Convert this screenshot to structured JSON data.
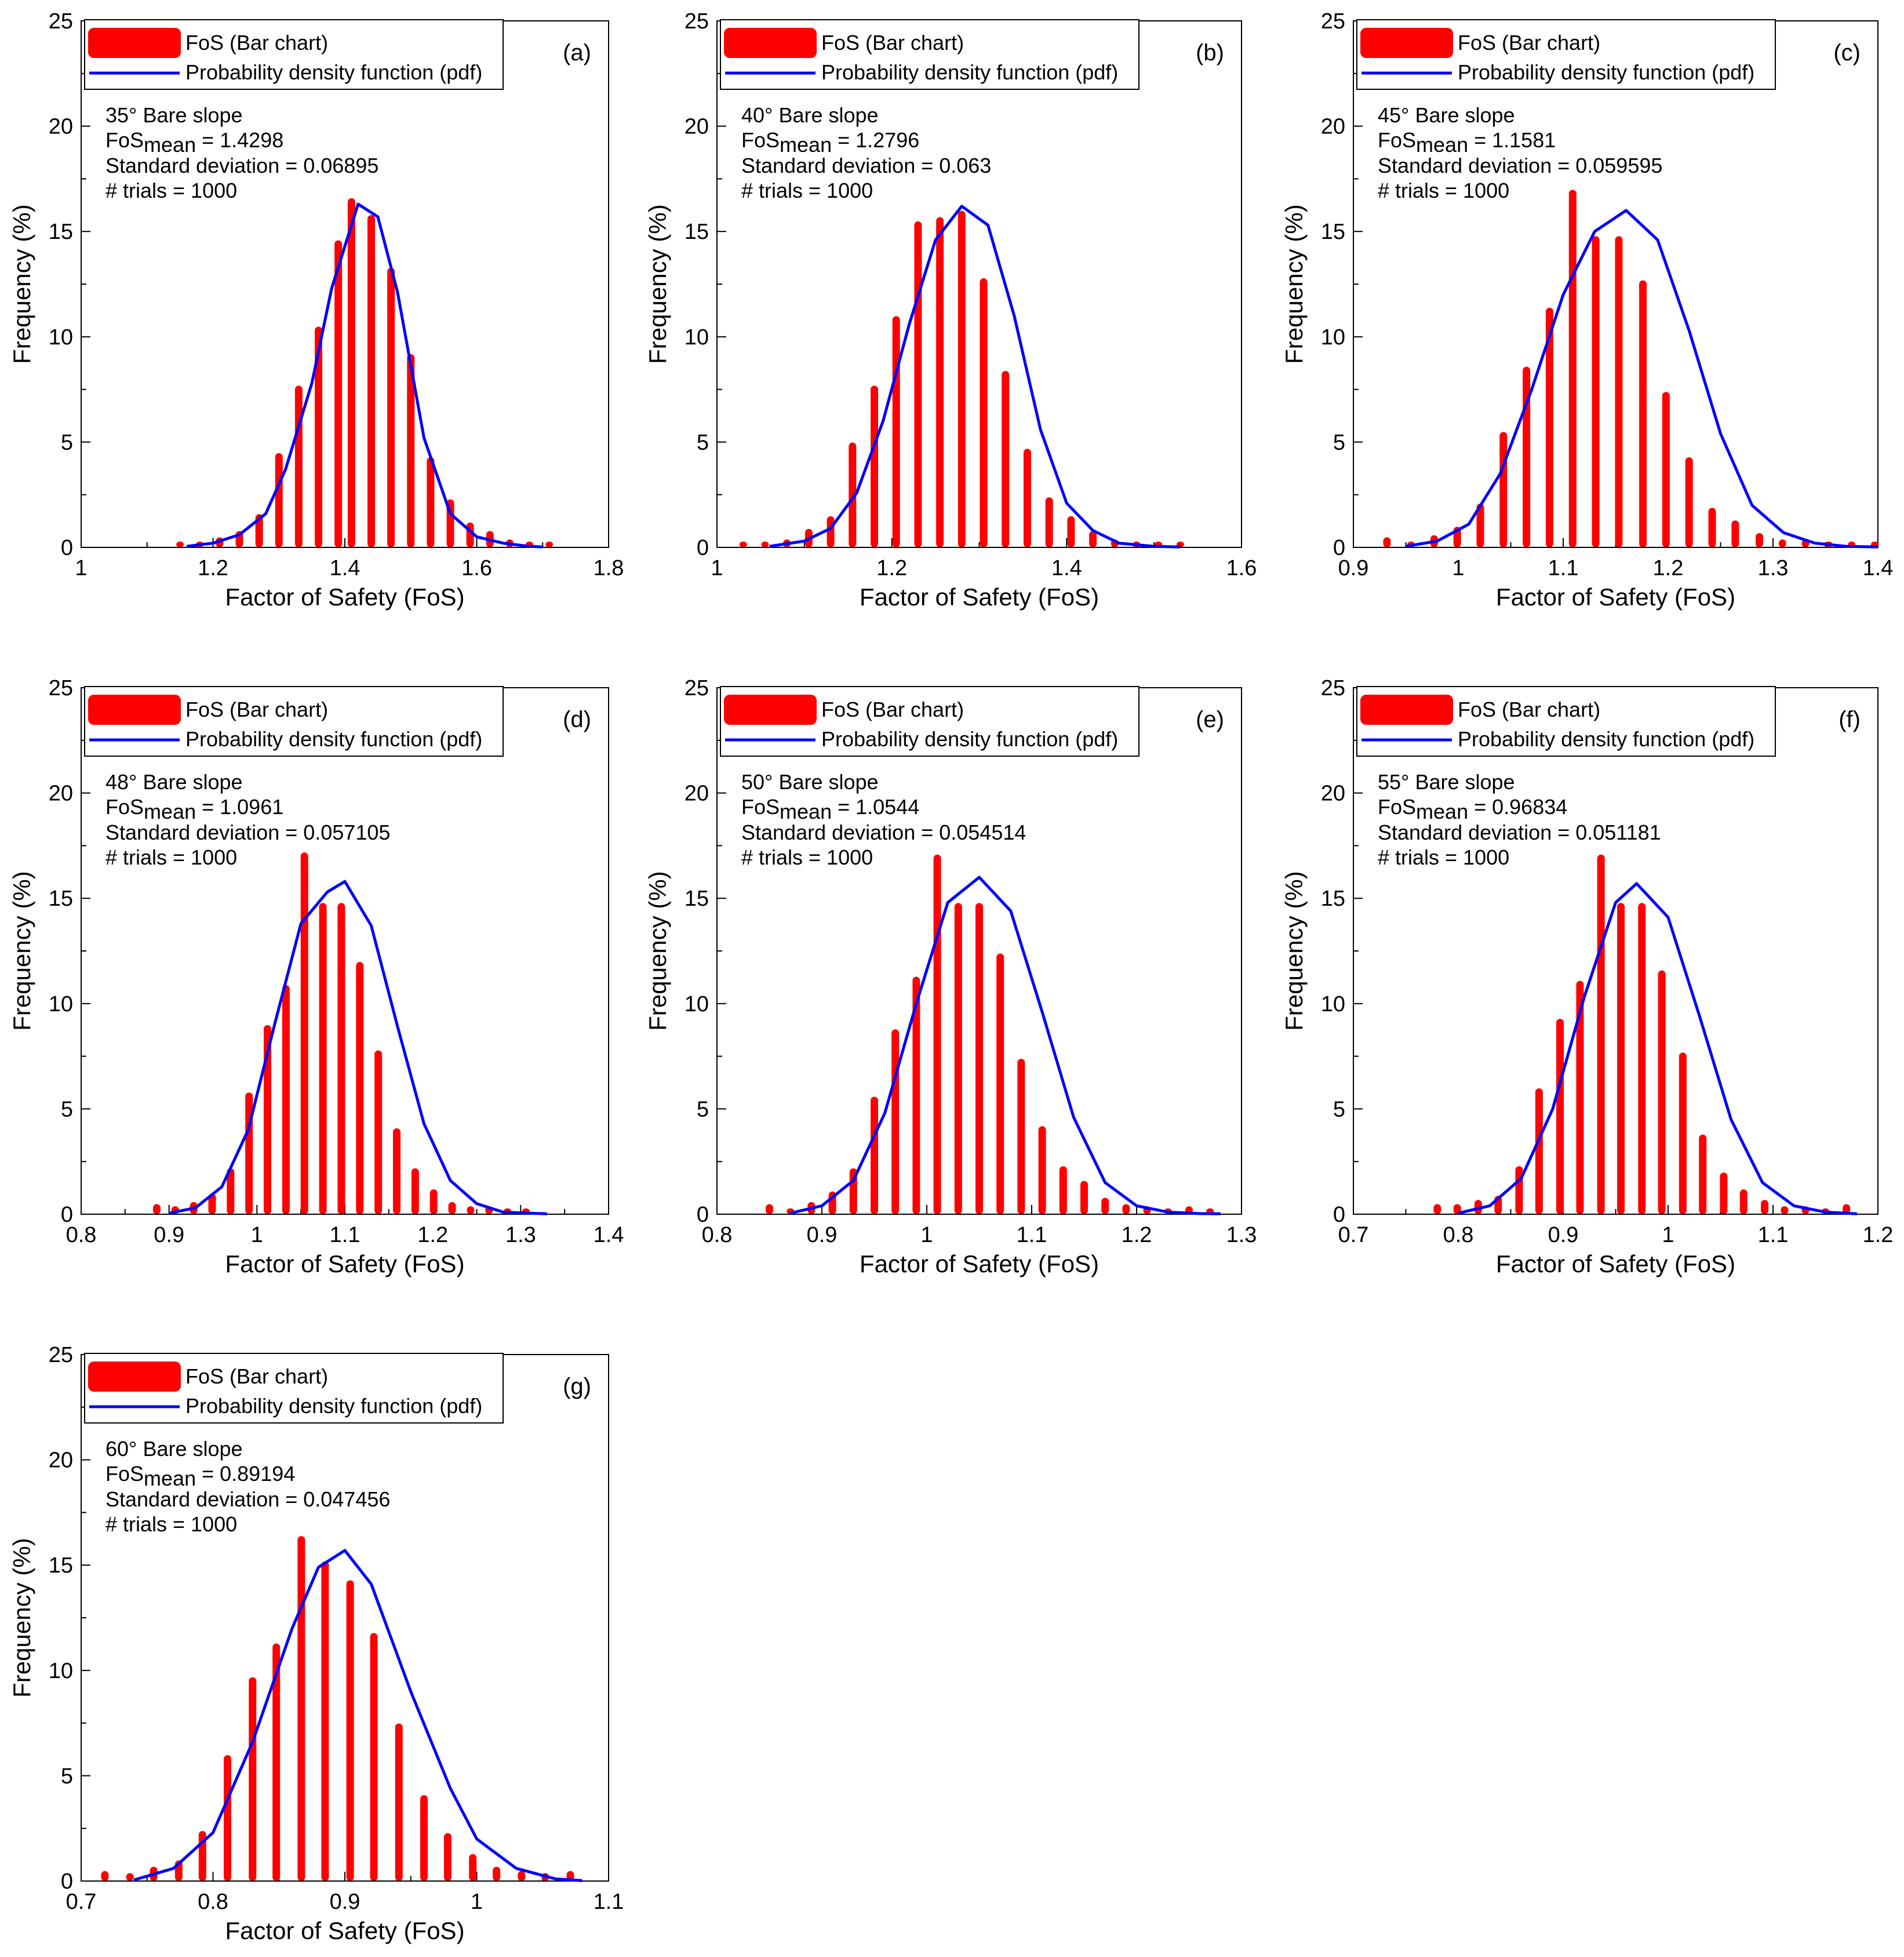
{
  "colors": {
    "bars": "#ff0000",
    "pdf": "#0000ff",
    "axes": "#000000"
  },
  "chart_data": [
    {
      "id": "a",
      "panel_label": "(a)",
      "type": "bar",
      "slope_label": "35° Bare slope",
      "fos_mean_prefix": "FoS",
      "fos_mean_sub": "mean",
      "fos_mean_value": " = 1.4298",
      "std_text": "Standard deviation = 0.06895",
      "trials_text": "# trials = 1000",
      "legend": [
        "FoS (Bar chart)",
        "Probability density function (pdf)"
      ],
      "xlabel": "Factor of Safety (FoS)",
      "ylabel": "Frequency (%)",
      "xlim": [
        1,
        1.8
      ],
      "xticks": [
        1,
        1.2,
        1.4,
        1.6,
        1.8
      ],
      "xtick_labels": [
        "1",
        "1.2",
        "1.4",
        "1.6",
        "1.8"
      ],
      "ylim": [
        0,
        25
      ],
      "yticks": [
        0,
        5,
        10,
        15,
        20,
        25
      ],
      "ytick_labels": [
        "0",
        "5",
        "10",
        "15",
        "20",
        "25"
      ],
      "bars": {
        "x": [
          1.15,
          1.18,
          1.21,
          1.24,
          1.27,
          1.3,
          1.33,
          1.36,
          1.39,
          1.41,
          1.44,
          1.47,
          1.5,
          1.53,
          1.56,
          1.59,
          1.62,
          1.65,
          1.68,
          1.71
        ],
        "y": [
          0.1,
          0.1,
          0.3,
          0.6,
          1.4,
          4.3,
          7.5,
          10.3,
          14.4,
          16.4,
          15.6,
          13.1,
          9.0,
          4.1,
          2.1,
          1.0,
          0.6,
          0.2,
          0.1,
          0.1
        ]
      },
      "pdf": {
        "x": [
          1.16,
          1.2,
          1.24,
          1.28,
          1.31,
          1.35,
          1.38,
          1.42,
          1.45,
          1.48,
          1.52,
          1.56,
          1.6,
          1.64,
          1.68,
          1.7
        ],
        "y": [
          0.05,
          0.2,
          0.6,
          1.6,
          3.7,
          7.8,
          12.3,
          16.3,
          15.7,
          12.1,
          5.2,
          1.6,
          0.5,
          0.2,
          0.05,
          0.02
        ]
      }
    },
    {
      "id": "b",
      "panel_label": "(b)",
      "type": "bar",
      "slope_label": "40° Bare slope",
      "fos_mean_prefix": "FoS",
      "fos_mean_sub": "mean",
      "fos_mean_value": " = 1.2796",
      "std_text": "Standard deviation = 0.063",
      "trials_text": "# trials = 1000",
      "legend": [
        "FoS (Bar chart)",
        "Probability density function (pdf)"
      ],
      "xlabel": "Factor of Safety (FoS)",
      "ylabel": "Frequency (%)",
      "xlim": [
        1,
        1.6
      ],
      "xticks": [
        1,
        1.2,
        1.4,
        1.6
      ],
      "xtick_labels": [
        "1",
        "1.2",
        "1.4",
        "1.6"
      ],
      "ylim": [
        0,
        25
      ],
      "yticks": [
        0,
        5,
        10,
        15,
        20,
        25
      ],
      "ytick_labels": [
        "0",
        "5",
        "10",
        "15",
        "20",
        "25"
      ],
      "bars": {
        "x": [
          1.03,
          1.055,
          1.08,
          1.105,
          1.13,
          1.155,
          1.18,
          1.205,
          1.23,
          1.255,
          1.28,
          1.305,
          1.33,
          1.355,
          1.38,
          1.405,
          1.43,
          1.455,
          1.48,
          1.505,
          1.53
        ],
        "y": [
          0.1,
          0.1,
          0.2,
          0.7,
          1.3,
          4.8,
          7.5,
          10.8,
          15.3,
          15.5,
          15.8,
          12.6,
          8.2,
          4.5,
          2.2,
          1.3,
          0.6,
          0.2,
          0.1,
          0.1,
          0.1
        ]
      },
      "pdf": {
        "x": [
          1.06,
          1.1,
          1.13,
          1.16,
          1.19,
          1.22,
          1.25,
          1.28,
          1.31,
          1.34,
          1.37,
          1.4,
          1.43,
          1.46,
          1.5,
          1.53
        ],
        "y": [
          0.05,
          0.3,
          0.9,
          2.6,
          6.0,
          10.6,
          14.6,
          16.2,
          15.3,
          11.0,
          5.6,
          2.1,
          0.8,
          0.2,
          0.05,
          0.02
        ]
      }
    },
    {
      "id": "c",
      "panel_label": "(c)",
      "type": "bar",
      "slope_label": "45° Bare slope",
      "fos_mean_prefix": "FoS",
      "fos_mean_sub": "mean",
      "fos_mean_value": " = 1.1581",
      "std_text": "Standard deviation = 0.059595",
      "trials_text": "# trials = 1000",
      "legend": [
        "FoS (Bar chart)",
        "Probability density function (pdf)"
      ],
      "xlabel": "Factor of Safety (FoS)",
      "ylabel": "Frequency (%)",
      "xlim": [
        0.9,
        1.4
      ],
      "xticks": [
        0.9,
        1,
        1.1,
        1.2,
        1.3,
        1.4
      ],
      "xtick_labels": [
        "0.9",
        "1",
        "1.1",
        "1.2",
        "1.3",
        "1.4"
      ],
      "ylim": [
        0,
        25
      ],
      "yticks": [
        0,
        5,
        10,
        15,
        20,
        25
      ],
      "ytick_labels": [
        "0",
        "5",
        "10",
        "15",
        "20",
        "25"
      ],
      "bars": {
        "x": [
          0.932,
          0.955,
          0.977,
          0.999,
          1.021,
          1.043,
          1.065,
          1.087,
          1.109,
          1.131,
          1.153,
          1.176,
          1.198,
          1.22,
          1.242,
          1.264,
          1.287,
          1.309,
          1.331,
          1.353,
          1.375,
          1.397
        ],
        "y": [
          0.3,
          0.1,
          0.4,
          0.8,
          1.9,
          5.3,
          8.4,
          11.2,
          16.8,
          14.6,
          14.6,
          12.5,
          7.2,
          4.1,
          1.7,
          1.1,
          0.5,
          0.2,
          0.2,
          0.1,
          0.1,
          0.1
        ]
      },
      "pdf": {
        "x": [
          0.95,
          0.98,
          1.01,
          1.04,
          1.07,
          1.1,
          1.13,
          1.16,
          1.19,
          1.22,
          1.25,
          1.28,
          1.31,
          1.34,
          1.37,
          1.4
        ],
        "y": [
          0.05,
          0.3,
          1.1,
          3.5,
          7.5,
          12.0,
          15.0,
          16.0,
          14.6,
          10.3,
          5.4,
          2.0,
          0.7,
          0.2,
          0.05,
          0.02
        ]
      }
    },
    {
      "id": "d",
      "panel_label": "(d)",
      "type": "bar",
      "slope_label": "48° Bare slope",
      "fos_mean_prefix": "FoS",
      "fos_mean_sub": "mean",
      "fos_mean_value": " = 1.0961",
      "std_text": "Standard deviation = 0.057105",
      "trials_text": "# trials = 1000",
      "legend": [
        "FoS (Bar chart)",
        "Probability density function (pdf)"
      ],
      "xlabel": "Factor of Safety (FoS)",
      "ylabel": "Frequency (%)",
      "xlim": [
        0.8,
        1.4
      ],
      "xticks": [
        0.8,
        0.9,
        1,
        1.1,
        1.2,
        1.3,
        1.4
      ],
      "xtick_labels": [
        "0.8",
        "0.9",
        "1",
        "1.1",
        "1.2",
        "1.3",
        "1.4"
      ],
      "ylim": [
        0,
        25
      ],
      "yticks": [
        0,
        5,
        10,
        15,
        20,
        25
      ],
      "ytick_labels": [
        "0",
        "5",
        "10",
        "15",
        "20",
        "25"
      ],
      "bars": {
        "x": [
          0.886,
          0.907,
          0.928,
          0.949,
          0.97,
          0.991,
          1.012,
          1.033,
          1.054,
          1.075,
          1.096,
          1.117,
          1.138,
          1.159,
          1.18,
          1.201,
          1.222,
          1.243,
          1.264,
          1.285,
          1.306
        ],
        "y": [
          0.3,
          0.2,
          0.4,
          0.8,
          2.0,
          5.6,
          8.8,
          10.7,
          17.0,
          14.6,
          14.6,
          11.8,
          7.6,
          3.9,
          2.0,
          1.0,
          0.4,
          0.2,
          0.2,
          0.1,
          0.1
        ]
      },
      "pdf": {
        "x": [
          0.9,
          0.93,
          0.96,
          0.99,
          1.02,
          1.05,
          1.08,
          1.1,
          1.13,
          1.16,
          1.19,
          1.22,
          1.25,
          1.28,
          1.31,
          1.33
        ],
        "y": [
          0.05,
          0.3,
          1.3,
          4.0,
          9.0,
          13.8,
          15.3,
          15.8,
          13.7,
          8.9,
          4.3,
          1.6,
          0.5,
          0.1,
          0.05,
          0.02
        ]
      }
    },
    {
      "id": "e",
      "panel_label": "(e)",
      "type": "bar",
      "slope_label": "50° Bare slope",
      "fos_mean_prefix": "FoS",
      "fos_mean_sub": "mean",
      "fos_mean_value": " = 1.0544",
      "std_text": "Standard deviation = 0.054514",
      "trials_text": "# trials = 1000",
      "legend": [
        "FoS (Bar chart)",
        "Probability density function (pdf)"
      ],
      "xlabel": "Factor of Safety (FoS)",
      "ylabel": "Frequency (%)",
      "xlim": [
        0.8,
        1.3
      ],
      "xticks": [
        0.8,
        0.9,
        1,
        1.1,
        1.2,
        1.3
      ],
      "xtick_labels": [
        "0.8",
        "0.9",
        "1",
        "1.1",
        "1.2",
        "1.3"
      ],
      "ylim": [
        0,
        25
      ],
      "yticks": [
        0,
        5,
        10,
        15,
        20,
        25
      ],
      "ytick_labels": [
        "0",
        "5",
        "10",
        "15",
        "20",
        "25"
      ],
      "bars": {
        "x": [
          0.85,
          0.87,
          0.89,
          0.91,
          0.93,
          0.95,
          0.97,
          0.99,
          1.01,
          1.03,
          1.05,
          1.07,
          1.09,
          1.11,
          1.13,
          1.15,
          1.17,
          1.19,
          1.21,
          1.23,
          1.25,
          1.27
        ],
        "y": [
          0.3,
          0.1,
          0.4,
          0.9,
          2.0,
          5.4,
          8.6,
          11.1,
          16.9,
          14.6,
          14.6,
          12.2,
          7.2,
          4.0,
          2.1,
          1.4,
          0.6,
          0.3,
          0.2,
          0.1,
          0.2,
          0.1
        ]
      },
      "pdf": {
        "x": [
          0.87,
          0.9,
          0.93,
          0.96,
          0.99,
          1.02,
          1.05,
          1.08,
          1.11,
          1.14,
          1.17,
          1.2,
          1.23,
          1.26,
          1.28
        ],
        "y": [
          0.05,
          0.4,
          1.6,
          4.8,
          10.0,
          14.8,
          16.0,
          14.4,
          9.6,
          4.6,
          1.5,
          0.4,
          0.1,
          0.03,
          0.02
        ]
      }
    },
    {
      "id": "f",
      "panel_label": "(f)",
      "type": "bar",
      "slope_label": "55° Bare slope",
      "fos_mean_prefix": "FoS",
      "fos_mean_sub": "mean",
      "fos_mean_value": " = 0.96834",
      "std_text": "Standard deviation = 0.051181",
      "trials_text": "# trials = 1000",
      "legend": [
        "FoS (Bar chart)",
        "Probability density function (pdf)"
      ],
      "xlabel": "Factor of Safety (FoS)",
      "ylabel": "Frequency (%)",
      "xlim": [
        0.7,
        1.2
      ],
      "xticks": [
        0.7,
        0.8,
        0.9,
        1,
        1.1,
        1.2
      ],
      "xtick_labels": [
        "0.7",
        "0.8",
        "0.9",
        "1",
        "1.1",
        "1.2"
      ],
      "ylim": [
        0,
        25
      ],
      "yticks": [
        0,
        5,
        10,
        15,
        20,
        25
      ],
      "ytick_labels": [
        "0",
        "5",
        "10",
        "15",
        "20",
        "25"
      ],
      "bars": {
        "x": [
          0.78,
          0.799,
          0.819,
          0.838,
          0.858,
          0.877,
          0.897,
          0.916,
          0.936,
          0.955,
          0.975,
          0.994,
          1.014,
          1.033,
          1.053,
          1.072,
          1.092,
          1.111,
          1.131,
          1.15,
          1.17
        ],
        "y": [
          0.3,
          0.3,
          0.5,
          0.7,
          2.1,
          5.8,
          9.1,
          10.9,
          16.9,
          14.6,
          14.6,
          11.4,
          7.5,
          3.6,
          1.8,
          1.0,
          0.5,
          0.2,
          0.2,
          0.1,
          0.3
        ]
      },
      "pdf": {
        "x": [
          0.8,
          0.83,
          0.86,
          0.89,
          0.92,
          0.95,
          0.97,
          1.0,
          1.03,
          1.06,
          1.09,
          1.12,
          1.15,
          1.18
        ],
        "y": [
          0.05,
          0.4,
          1.7,
          5.0,
          10.3,
          14.8,
          15.7,
          14.1,
          9.4,
          4.5,
          1.5,
          0.4,
          0.1,
          0.02
        ]
      }
    },
    {
      "id": "g",
      "panel_label": "(g)",
      "type": "bar",
      "slope_label": "60° Bare slope",
      "fos_mean_prefix": "FoS",
      "fos_mean_sub": "mean",
      "fos_mean_value": " = 0.89194",
      "std_text": "Standard deviation = 0.047456",
      "trials_text": "# trials = 1000",
      "legend": [
        "FoS (Bar chart)",
        "Probability density function (pdf)"
      ],
      "xlabel": "Factor of Safety (FoS)",
      "ylabel": "Frequency (%)",
      "xlim": [
        0.7,
        1.1
      ],
      "xticks": [
        0.7,
        0.8,
        0.9,
        1,
        1.1
      ],
      "xtick_labels": [
        "0.7",
        "0.8",
        "0.9",
        "1",
        "1.1"
      ],
      "ylim": [
        0,
        25
      ],
      "yticks": [
        0,
        5,
        10,
        15,
        20,
        25
      ],
      "ytick_labels": [
        "0",
        "5",
        "10",
        "15",
        "20",
        "25"
      ],
      "bars": {
        "x": [
          0.718,
          0.737,
          0.755,
          0.774,
          0.792,
          0.811,
          0.83,
          0.848,
          0.867,
          0.885,
          0.904,
          0.922,
          0.941,
          0.96,
          0.978,
          0.997,
          1.015,
          1.034,
          1.052,
          1.071
        ],
        "y": [
          0.3,
          0.2,
          0.5,
          0.8,
          2.2,
          5.8,
          9.5,
          11.1,
          16.2,
          15.0,
          14.1,
          11.6,
          7.3,
          3.9,
          2.1,
          1.1,
          0.5,
          0.3,
          0.2,
          0.3
        ]
      },
      "pdf": {
        "x": [
          0.74,
          0.77,
          0.8,
          0.83,
          0.86,
          0.88,
          0.9,
          0.92,
          0.95,
          0.98,
          1.0,
          1.03,
          1.06,
          1.08
        ],
        "y": [
          0.05,
          0.6,
          2.3,
          6.6,
          12.0,
          14.9,
          15.7,
          14.1,
          9.0,
          4.4,
          2.0,
          0.6,
          0.1,
          0.02
        ]
      }
    }
  ]
}
